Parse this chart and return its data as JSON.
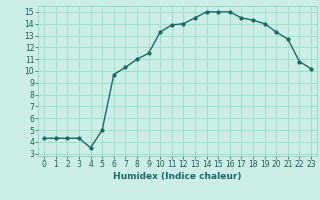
{
  "x": [
    0,
    1,
    2,
    3,
    4,
    5,
    6,
    7,
    8,
    9,
    10,
    11,
    12,
    13,
    14,
    15,
    16,
    17,
    18,
    19,
    20,
    21,
    22,
    23
  ],
  "y": [
    4.3,
    4.3,
    4.3,
    4.3,
    3.5,
    5.0,
    9.7,
    10.3,
    11.0,
    11.5,
    13.3,
    13.9,
    14.0,
    14.5,
    15.0,
    15.0,
    15.0,
    14.5,
    14.3,
    14.0,
    13.3,
    12.7,
    10.8,
    10.2
  ],
  "line_color": "#1a6b5e",
  "bg_color": "#cceee8",
  "grid_color": "#99ddcc",
  "xlabel": "Humidex (Indice chaleur)",
  "ylim": [
    2.8,
    15.5
  ],
  "xlim": [
    -0.5,
    23.5
  ],
  "yticks": [
    3,
    4,
    5,
    6,
    7,
    8,
    9,
    10,
    11,
    12,
    13,
    14,
    15
  ],
  "xticks": [
    0,
    1,
    2,
    3,
    4,
    5,
    6,
    7,
    8,
    9,
    10,
    11,
    12,
    13,
    14,
    15,
    16,
    17,
    18,
    19,
    20,
    21,
    22,
    23
  ],
  "marker_size": 2.0,
  "line_width": 1.0,
  "tick_labelsize": 5.5,
  "xlabel_fontsize": 6.5
}
